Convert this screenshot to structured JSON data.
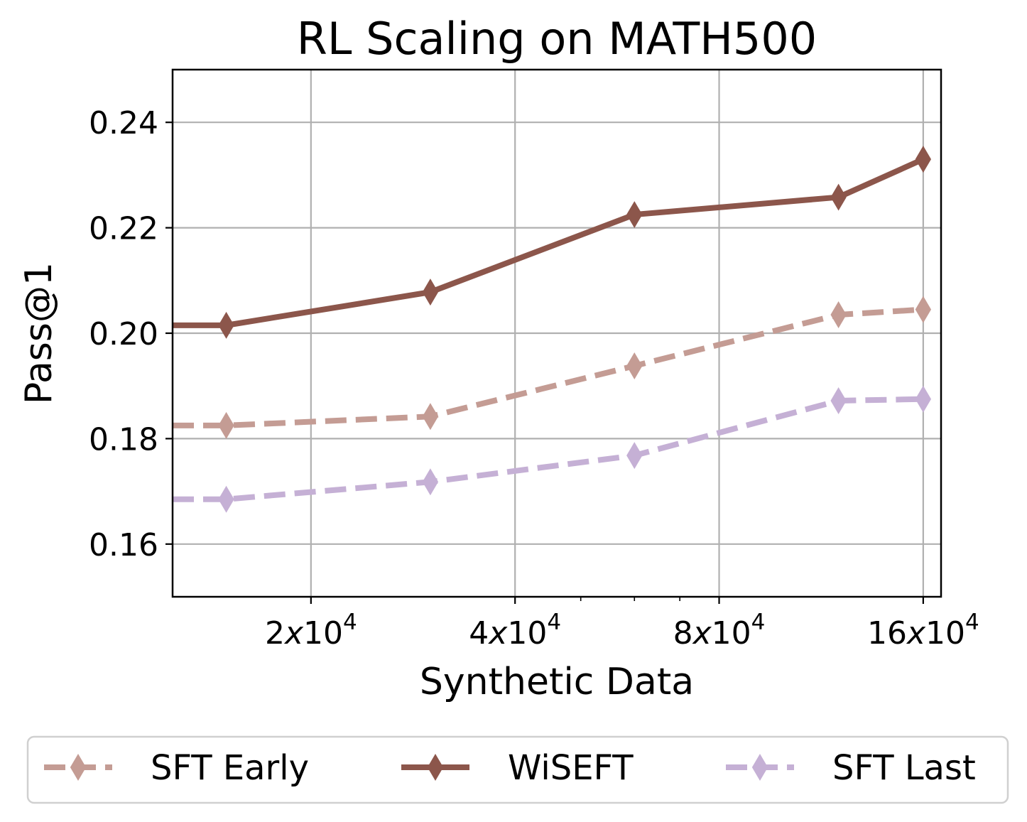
{
  "chart_data": {
    "type": "line",
    "title": "RL Scaling on MATH500",
    "xlabel": "Synthetic Data",
    "ylabel": "Pass@1",
    "x_scale": "log2",
    "x": [
      15000,
      30000,
      60000,
      120000,
      160000
    ],
    "xlim": [
      12500,
      170000
    ],
    "ylim": [
      0.15,
      0.25
    ],
    "yticks": [
      0.16,
      0.18,
      0.2,
      0.22,
      0.24
    ],
    "ytick_labels": [
      "0.16",
      "0.18",
      "0.20",
      "0.22",
      "0.24"
    ],
    "xticks": [
      {
        "value": 20000,
        "mantissa": "2",
        "exp": "4"
      },
      {
        "value": 40000,
        "mantissa": "4",
        "exp": "4"
      },
      {
        "value": 80000,
        "mantissa": "8",
        "exp": "4"
      },
      {
        "value": 160000,
        "mantissa": "16",
        "exp": "4"
      }
    ],
    "grid": true,
    "legend_position": "bottom",
    "series": [
      {
        "name": "SFT Early",
        "color": "#c49c94",
        "style": "dashed",
        "marker": "thin-diamond",
        "values": [
          0.1825,
          0.1842,
          0.1938,
          0.2035,
          0.2045
        ]
      },
      {
        "name": "WiSEFT",
        "color": "#8c564b",
        "style": "solid",
        "marker": "thin-diamond",
        "values": [
          0.2015,
          0.2078,
          0.2225,
          0.2258,
          0.233
        ]
      },
      {
        "name": "SFT Last",
        "color": "#c5b0d5",
        "style": "dashed",
        "marker": "thin-diamond",
        "values": [
          0.1685,
          0.1718,
          0.1768,
          0.1872,
          0.1875
        ]
      }
    ]
  }
}
